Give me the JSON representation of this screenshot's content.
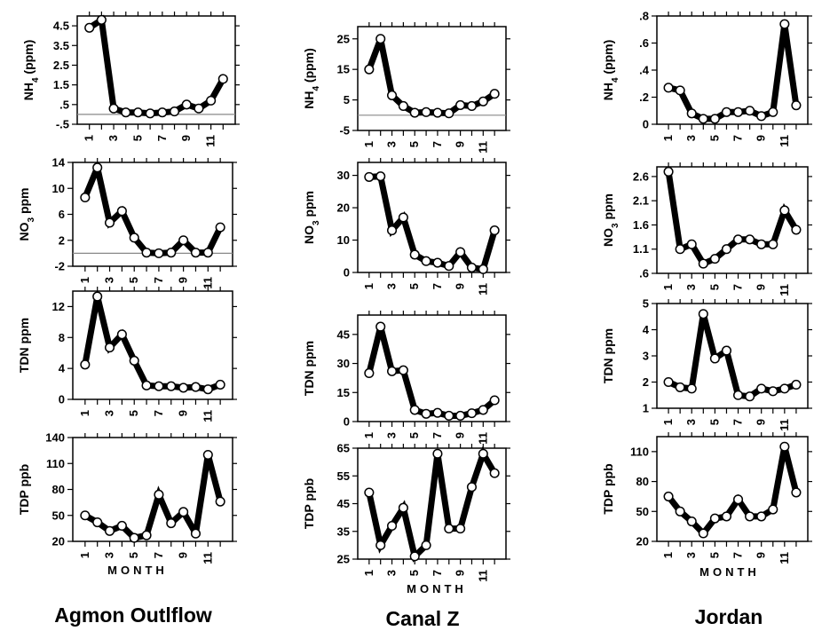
{
  "figure": {
    "month_label": "MONTH",
    "columns": [
      "Agmon Outlflow",
      "Canal Z",
      "Jordan"
    ]
  },
  "chart_data": [
    {
      "id": "agmon-nh4",
      "type": "line",
      "ylabel": "NH4 (ppm)",
      "ylim": [
        -0.5,
        5.0
      ],
      "yticks": [
        -0.5,
        0.5,
        1.5,
        2.5,
        3.5,
        4.5
      ],
      "ytick_labels": [
        "-.5",
        ".5",
        "1.5",
        "2.5",
        "3.5",
        "4.5"
      ],
      "xticks": [
        1,
        3,
        5,
        7,
        9,
        11
      ],
      "baseline": 0,
      "x": [
        1,
        2,
        3,
        4,
        5,
        6,
        7,
        8,
        9,
        10,
        11,
        12
      ],
      "values": [
        4.4,
        4.8,
        0.3,
        0.1,
        0.1,
        0.05,
        0.1,
        0.15,
        0.5,
        0.3,
        0.7,
        1.8
      ]
    },
    {
      "id": "agmon-no3",
      "type": "line",
      "ylabel": "NO3 ppm",
      "ylim": [
        -2,
        14
      ],
      "yticks": [
        -2,
        2,
        6,
        10,
        14
      ],
      "ytick_labels": [
        "-2",
        "2",
        "6",
        "10",
        "14"
      ],
      "xticks": [
        1,
        3,
        5,
        7,
        9,
        11
      ],
      "baseline": 0,
      "x": [
        1,
        2,
        3,
        4,
        5,
        6,
        7,
        8,
        9,
        10,
        11,
        12
      ],
      "values": [
        8.6,
        13.2,
        4.7,
        6.5,
        2.4,
        0.1,
        0.0,
        0.1,
        2.0,
        0.1,
        0.1,
        4.0
      ]
    },
    {
      "id": "agmon-tdn",
      "type": "line",
      "ylabel": "TDN ppm",
      "ylim": [
        0,
        14
      ],
      "yticks": [
        0,
        4,
        8,
        12
      ],
      "ytick_labels": [
        "0",
        "4",
        "8",
        "12"
      ],
      "xticks": [
        1,
        3,
        5,
        7,
        9,
        11
      ],
      "x": [
        1,
        2,
        3,
        4,
        5,
        6,
        7,
        8,
        9,
        10,
        11,
        12
      ],
      "values": [
        4.5,
        13.3,
        6.7,
        8.4,
        5.0,
        1.8,
        1.7,
        1.7,
        1.5,
        1.6,
        1.3,
        1.9
      ]
    },
    {
      "id": "agmon-tdp",
      "type": "line",
      "ylabel": "TDP ppb",
      "ylim": [
        20,
        140
      ],
      "yticks": [
        20,
        50,
        80,
        110,
        140
      ],
      "ytick_labels": [
        "20",
        "50",
        "80",
        "110",
        "140"
      ],
      "xticks": [
        1,
        3,
        5,
        7,
        9,
        11
      ],
      "x": [
        1,
        2,
        3,
        4,
        5,
        6,
        7,
        8,
        9,
        10,
        11,
        12
      ],
      "values": [
        50,
        42,
        32,
        38,
        24,
        27,
        74,
        41,
        54,
        29,
        120,
        66
      ]
    },
    {
      "id": "canal-nh4",
      "type": "line",
      "ylabel": "NH4 (ppm)",
      "ylim": [
        -5,
        29
      ],
      "yticks": [
        -5,
        5,
        15,
        25
      ],
      "ytick_labels": [
        "-5",
        "5",
        "15",
        "25"
      ],
      "xticks": [
        1,
        3,
        5,
        7,
        9,
        11
      ],
      "baseline": 0,
      "x": [
        1,
        2,
        3,
        4,
        5,
        6,
        7,
        8,
        9,
        10,
        11,
        12
      ],
      "values": [
        15,
        25,
        6.5,
        3,
        0.8,
        1.0,
        0.8,
        0.6,
        3.3,
        3,
        4.5,
        7
      ]
    },
    {
      "id": "canal-no3",
      "type": "line",
      "ylabel": "NO3 ppm",
      "ylim": [
        0,
        34
      ],
      "yticks": [
        0,
        10,
        20,
        30
      ],
      "ytick_labels": [
        "0",
        "10",
        "20",
        "30"
      ],
      "xticks": [
        1,
        3,
        5,
        7,
        9,
        11
      ],
      "x": [
        1,
        2,
        3,
        4,
        5,
        6,
        7,
        8,
        9,
        10,
        11,
        12
      ],
      "values": [
        29.5,
        29.7,
        13,
        17,
        5.5,
        3.5,
        3,
        2,
        6.3,
        1.5,
        1,
        13
      ]
    },
    {
      "id": "canal-tdn",
      "type": "line",
      "ylabel": "TDN ppm",
      "ylim": [
        0,
        55
      ],
      "yticks": [
        0,
        15,
        30,
        45
      ],
      "ytick_labels": [
        "0",
        "15",
        "30",
        "45"
      ],
      "xticks": [
        1,
        3,
        5,
        7,
        9,
        11
      ],
      "x": [
        1,
        2,
        3,
        4,
        5,
        6,
        7,
        8,
        9,
        10,
        11,
        12
      ],
      "values": [
        25,
        49,
        26,
        26.5,
        6,
        4,
        4.5,
        3,
        3,
        4.3,
        6,
        11
      ]
    },
    {
      "id": "canal-tdp",
      "type": "line",
      "ylabel": "TDP ppb",
      "ylim": [
        25,
        65
      ],
      "yticks": [
        25,
        35,
        45,
        55,
        65
      ],
      "ytick_labels": [
        "25",
        "35",
        "45",
        "55",
        "65"
      ],
      "xticks": [
        1,
        3,
        5,
        7,
        9,
        11
      ],
      "x": [
        1,
        2,
        3,
        4,
        5,
        6,
        7,
        8,
        9,
        10,
        11,
        12
      ],
      "values": [
        49,
        30,
        37,
        43.5,
        26,
        30,
        63,
        36,
        36,
        51,
        63,
        56
      ]
    },
    {
      "id": "jordan-nh4",
      "type": "line",
      "ylabel": "NH4 (ppm)",
      "ylim": [
        0,
        0.8
      ],
      "yticks": [
        0,
        0.2,
        0.4,
        0.6,
        0.8
      ],
      "ytick_labels": [
        "0",
        ".2",
        ".4",
        ".6",
        ".8"
      ],
      "xticks": [
        1,
        3,
        5,
        7,
        9,
        11
      ],
      "x": [
        1,
        2,
        3,
        4,
        5,
        6,
        7,
        8,
        9,
        10,
        11,
        12
      ],
      "values": [
        0.27,
        0.25,
        0.08,
        0.04,
        0.04,
        0.09,
        0.09,
        0.1,
        0.06,
        0.09,
        0.74,
        0.14
      ]
    },
    {
      "id": "jordan-no3",
      "type": "line",
      "ylabel": "NO3 ppm",
      "ylim": [
        0.6,
        2.8
      ],
      "yticks": [
        0.6,
        1.1,
        1.6,
        2.1,
        2.6
      ],
      "ytick_labels": [
        ".6",
        "1.1",
        "1.6",
        "2.1",
        "2.6"
      ],
      "xticks": [
        1,
        3,
        5,
        7,
        9,
        11
      ],
      "x": [
        1,
        2,
        3,
        4,
        5,
        6,
        7,
        8,
        9,
        10,
        11,
        12
      ],
      "values": [
        2.7,
        1.1,
        1.2,
        0.8,
        0.9,
        1.1,
        1.3,
        1.3,
        1.2,
        1.2,
        1.9,
        1.5
      ]
    },
    {
      "id": "jordan-tdn",
      "type": "line",
      "ylabel": "TDN ppm",
      "ylim": [
        1,
        5
      ],
      "yticks": [
        1,
        2,
        3,
        4,
        5
      ],
      "ytick_labels": [
        "1",
        "2",
        "3",
        "4",
        "5"
      ],
      "xticks": [
        1,
        3,
        5,
        7,
        9,
        11
      ],
      "x": [
        1,
        2,
        3,
        4,
        5,
        6,
        7,
        8,
        9,
        10,
        11,
        12
      ],
      "values": [
        2.0,
        1.8,
        1.75,
        4.6,
        2.9,
        3.2,
        1.5,
        1.45,
        1.75,
        1.65,
        1.75,
        1.9
      ]
    },
    {
      "id": "jordan-tdp",
      "type": "line",
      "ylabel": "TDP ppb",
      "ylim": [
        20,
        125
      ],
      "yticks": [
        20,
        50,
        80,
        110
      ],
      "ytick_labels": [
        "20",
        "50",
        "80",
        "110"
      ],
      "xticks": [
        1,
        3,
        5,
        7,
        9,
        11
      ],
      "x": [
        1,
        2,
        3,
        4,
        5,
        6,
        7,
        8,
        9,
        10,
        11,
        12
      ],
      "values": [
        65,
        50,
        40,
        28,
        43,
        45,
        62,
        45,
        45,
        52,
        115,
        69
      ]
    }
  ]
}
